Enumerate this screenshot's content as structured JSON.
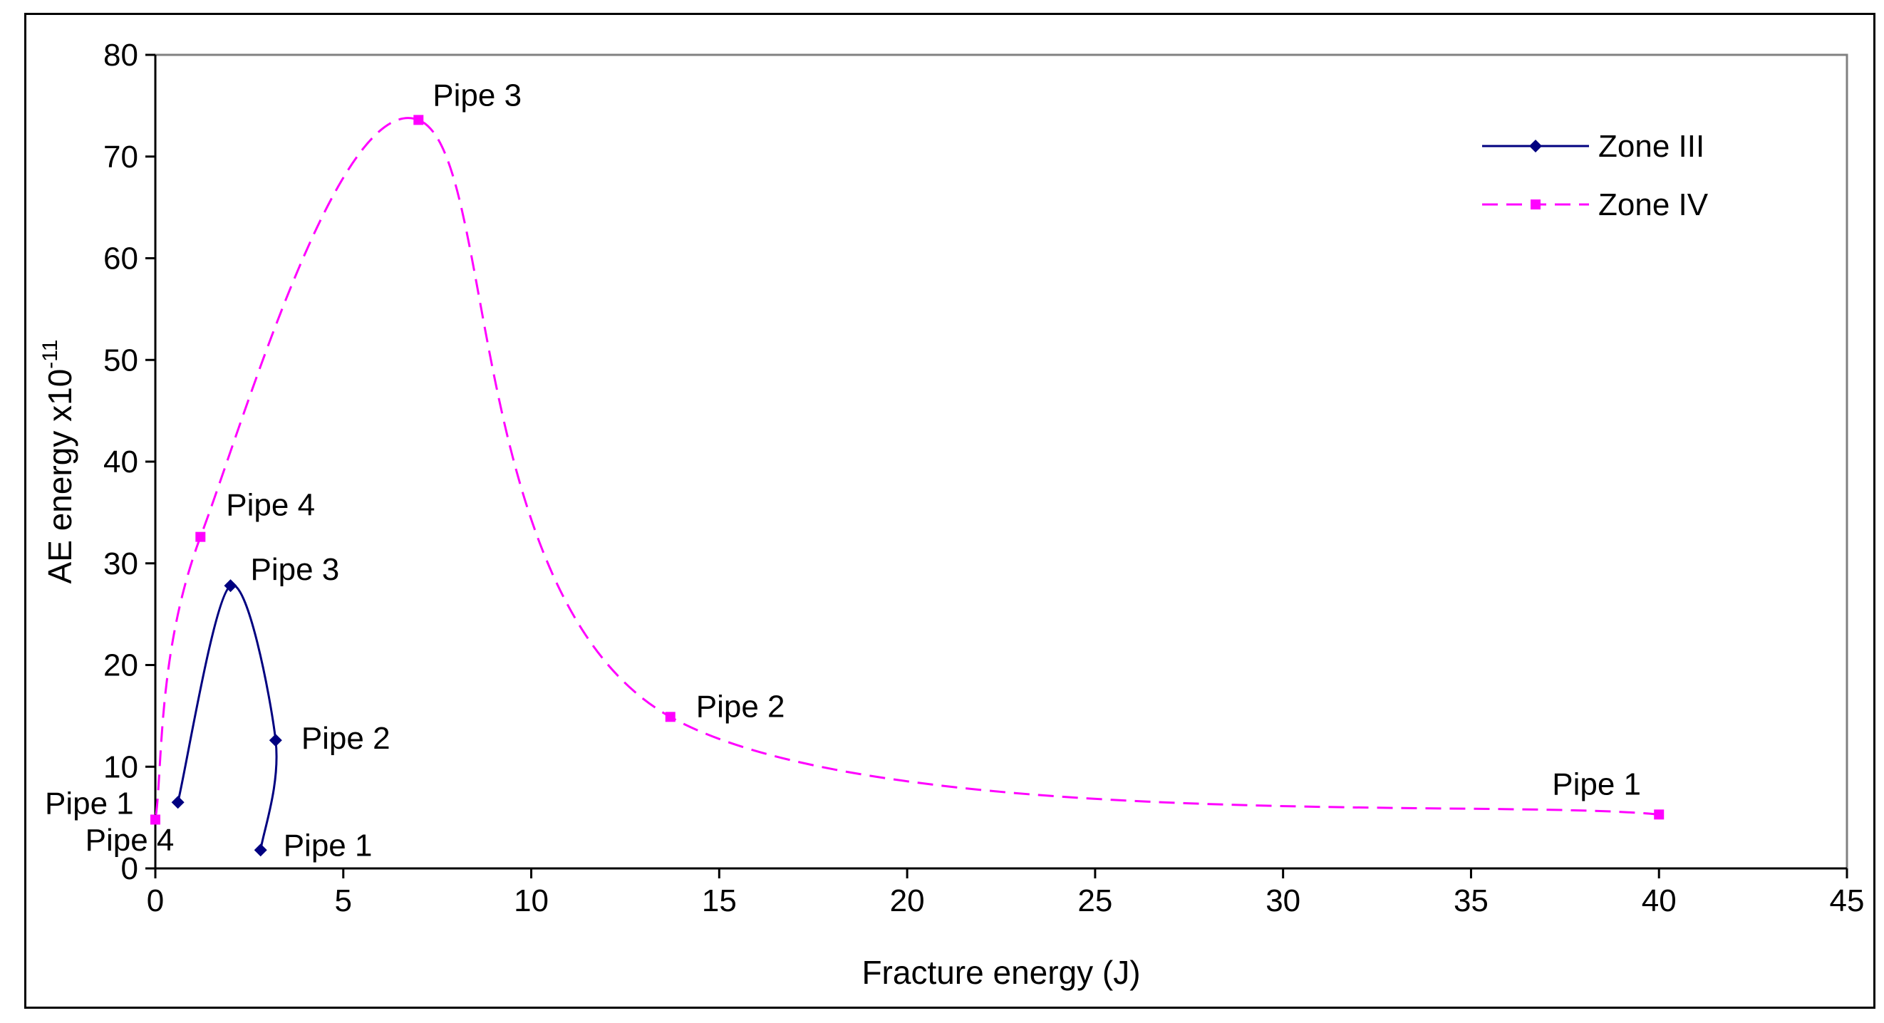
{
  "chart_data": {
    "type": "line",
    "title": "",
    "xlabel": "Fracture energy (J)",
    "ylabel": "AE energy x10",
    "ylabel_superscript": "-11",
    "xlim": [
      0,
      45
    ],
    "ylim": [
      0,
      80
    ],
    "x_ticks": [
      "0",
      "5",
      "10",
      "15",
      "20",
      "25",
      "30",
      "35",
      "40",
      "45"
    ],
    "y_ticks": [
      "0",
      "10",
      "20",
      "30",
      "40",
      "50",
      "60",
      "70",
      "80"
    ],
    "grid": false,
    "legend_position": "top-right",
    "series": [
      {
        "name": "Zone III",
        "color": "#000080",
        "line_style": "solid",
        "marker": "diamond",
        "x": [
          2.8,
          3.2,
          2.0,
          0.6
        ],
        "y": [
          1.8,
          12.6,
          27.8,
          6.5
        ],
        "labels": [
          "Pipe 1",
          "Pipe 2",
          "Pipe 3",
          "Pipe 4"
        ]
      },
      {
        "name": "Zone IV",
        "color": "#FF00FF",
        "line_style": "dashed",
        "marker": "square",
        "x": [
          40.0,
          13.7,
          7.0,
          1.2,
          0.0
        ],
        "y": [
          5.3,
          14.9,
          73.6,
          32.6,
          4.8
        ],
        "labels": [
          "Pipe 1",
          "Pipe 2",
          "Pipe 3",
          "Pipe 4",
          "Pipe 1"
        ]
      }
    ]
  }
}
